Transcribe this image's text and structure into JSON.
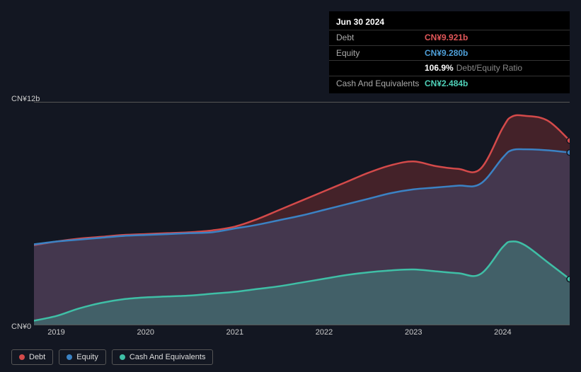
{
  "tooltip": {
    "date": "Jun 30 2024",
    "rows": [
      {
        "label": "Debt",
        "value": "CN¥9.921b",
        "color": "#e15759"
      },
      {
        "label": "Equity",
        "value": "CN¥9.280b",
        "color": "#4e9fd8"
      },
      {
        "label": "",
        "value": "106.9%",
        "sublabel": "Debt/Equity Ratio",
        "color": "#ffffff"
      },
      {
        "label": "Cash And Equivalents",
        "value": "CN¥2.484b",
        "color": "#4fd1b9"
      }
    ]
  },
  "chart": {
    "type": "area",
    "background_color": "#131722",
    "plot_background": "#131722",
    "grid_color": "#555555",
    "ylim": [
      0,
      12
    ],
    "y_ticks": [
      {
        "v": 0,
        "label": "CN¥0"
      },
      {
        "v": 12,
        "label": "CN¥12b"
      }
    ],
    "x_labels": [
      "2019",
      "2020",
      "2021",
      "2022",
      "2023",
      "2024"
    ],
    "x_range": [
      2018.75,
      2024.75
    ],
    "series": [
      {
        "name": "Debt",
        "color": "#d44a4a",
        "fill": "rgba(160,55,55,0.35)",
        "line_width": 2.5,
        "marker_color": "#d44a4a",
        "data": [
          [
            2018.75,
            4.3
          ],
          [
            2019.0,
            4.5
          ],
          [
            2019.25,
            4.65
          ],
          [
            2019.5,
            4.75
          ],
          [
            2019.75,
            4.85
          ],
          [
            2020.0,
            4.9
          ],
          [
            2020.25,
            4.95
          ],
          [
            2020.5,
            5.0
          ],
          [
            2020.75,
            5.1
          ],
          [
            2021.0,
            5.3
          ],
          [
            2021.25,
            5.7
          ],
          [
            2021.5,
            6.2
          ],
          [
            2021.75,
            6.7
          ],
          [
            2022.0,
            7.2
          ],
          [
            2022.25,
            7.7
          ],
          [
            2022.5,
            8.2
          ],
          [
            2022.75,
            8.6
          ],
          [
            2023.0,
            8.8
          ],
          [
            2023.25,
            8.55
          ],
          [
            2023.5,
            8.4
          ],
          [
            2023.75,
            8.4
          ],
          [
            2024.0,
            10.6
          ],
          [
            2024.1,
            11.2
          ],
          [
            2024.25,
            11.25
          ],
          [
            2024.5,
            11.0
          ],
          [
            2024.75,
            9.921
          ]
        ]
      },
      {
        "name": "Equity",
        "color": "#3b82c4",
        "fill": "rgba(70,95,150,0.35)",
        "line_width": 2.5,
        "marker_color": "#3b82c4",
        "data": [
          [
            2018.75,
            4.35
          ],
          [
            2019.0,
            4.5
          ],
          [
            2019.25,
            4.6
          ],
          [
            2019.5,
            4.7
          ],
          [
            2019.75,
            4.8
          ],
          [
            2020.0,
            4.85
          ],
          [
            2020.25,
            4.9
          ],
          [
            2020.5,
            4.95
          ],
          [
            2020.75,
            5.0
          ],
          [
            2021.0,
            5.2
          ],
          [
            2021.25,
            5.4
          ],
          [
            2021.5,
            5.65
          ],
          [
            2021.75,
            5.9
          ],
          [
            2022.0,
            6.2
          ],
          [
            2022.25,
            6.5
          ],
          [
            2022.5,
            6.8
          ],
          [
            2022.75,
            7.1
          ],
          [
            2023.0,
            7.3
          ],
          [
            2023.25,
            7.4
          ],
          [
            2023.5,
            7.5
          ],
          [
            2023.75,
            7.6
          ],
          [
            2024.0,
            9.0
          ],
          [
            2024.1,
            9.4
          ],
          [
            2024.25,
            9.45
          ],
          [
            2024.5,
            9.4
          ],
          [
            2024.75,
            9.28
          ]
        ]
      },
      {
        "name": "Cash And Equivalents",
        "color": "#3fbfa6",
        "fill": "rgba(63,191,166,0.30)",
        "line_width": 2.5,
        "marker_color": "#3fbfa6",
        "data": [
          [
            2018.75,
            0.25
          ],
          [
            2019.0,
            0.5
          ],
          [
            2019.25,
            0.9
          ],
          [
            2019.5,
            1.2
          ],
          [
            2019.75,
            1.4
          ],
          [
            2020.0,
            1.5
          ],
          [
            2020.25,
            1.55
          ],
          [
            2020.5,
            1.6
          ],
          [
            2020.75,
            1.7
          ],
          [
            2021.0,
            1.8
          ],
          [
            2021.25,
            1.95
          ],
          [
            2021.5,
            2.1
          ],
          [
            2021.75,
            2.3
          ],
          [
            2022.0,
            2.5
          ],
          [
            2022.25,
            2.7
          ],
          [
            2022.5,
            2.85
          ],
          [
            2022.75,
            2.95
          ],
          [
            2023.0,
            3.0
          ],
          [
            2023.25,
            2.9
          ],
          [
            2023.5,
            2.8
          ],
          [
            2023.75,
            2.75
          ],
          [
            2024.0,
            4.2
          ],
          [
            2024.1,
            4.5
          ],
          [
            2024.25,
            4.3
          ],
          [
            2024.5,
            3.4
          ],
          [
            2024.75,
            2.484
          ]
        ]
      }
    ]
  },
  "legend": [
    {
      "label": "Debt",
      "color": "#d44a4a"
    },
    {
      "label": "Equity",
      "color": "#3b82c4"
    },
    {
      "label": "Cash And Equivalents",
      "color": "#3fbfa6"
    }
  ]
}
